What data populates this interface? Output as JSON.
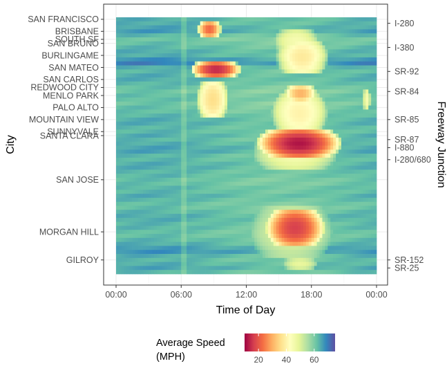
{
  "chart_data": {
    "type": "heatmap",
    "xlabel": "Time of Day",
    "ylabel": "City",
    "y2label": "Freeway Junction",
    "x_ticks": [
      "00:00",
      "06:00",
      "12:00",
      "18:00",
      "00:00"
    ],
    "x_range_hours": [
      0,
      24
    ],
    "grid": true,
    "city_labels": [
      {
        "name": "SAN FRANCISCO",
        "row": 0
      },
      {
        "name": "BRISBANE",
        "row": 3
      },
      {
        "name": "SOUTH SF",
        "row": 5
      },
      {
        "name": "SAN BRUNO",
        "row": 6
      },
      {
        "name": "BURLINGAME",
        "row": 9
      },
      {
        "name": "SAN MATEO",
        "row": 12
      },
      {
        "name": "SAN CARLOS",
        "row": 15
      },
      {
        "name": "REDWOOD CITY",
        "row": 17
      },
      {
        "name": "MENLO PARK",
        "row": 19
      },
      {
        "name": "PALO ALTO",
        "row": 22
      },
      {
        "name": "MOUNTAIN VIEW",
        "row": 25
      },
      {
        "name": "SUNNYVALE",
        "row": 28
      },
      {
        "name": "SANTA CLARA",
        "row": 29
      },
      {
        "name": "SAN JOSE",
        "row": 40
      },
      {
        "name": "MORGAN HILL",
        "row": 53
      },
      {
        "name": "GILROY",
        "row": 60
      }
    ],
    "junction_labels": [
      {
        "name": "I-280",
        "row": 1
      },
      {
        "name": "I-380",
        "row": 7
      },
      {
        "name": "SR-92",
        "row": 13
      },
      {
        "name": "SR-84",
        "row": 18
      },
      {
        "name": "SR-85",
        "row": 25
      },
      {
        "name": "SR-87",
        "row": 30
      },
      {
        "name": "I-880",
        "row": 32
      },
      {
        "name": "I-280/680",
        "row": 35
      },
      {
        "name": "SR-152",
        "row": 60
      },
      {
        "name": "SR-25",
        "row": 62
      }
    ],
    "n_rows": 64,
    "baseline_speed_mph": [
      63,
      63,
      64,
      65,
      62,
      60,
      61,
      62,
      63,
      63,
      66,
      68,
      63,
      62,
      63,
      63,
      62,
      61,
      60,
      61,
      61,
      60,
      61,
      61,
      62,
      63,
      63,
      62,
      62,
      63,
      62,
      63,
      64,
      64,
      62,
      62,
      63,
      63,
      62,
      62,
      61,
      61,
      62,
      62,
      63,
      62,
      61,
      61,
      62,
      63,
      63,
      62,
      62,
      61,
      61,
      62,
      63,
      65,
      66,
      63,
      62,
      63,
      64,
      62
    ],
    "congestion_hotspots": [
      {
        "row_start": 1,
        "row_end": 4,
        "from_hour": 7.6,
        "to_hour": 9.6,
        "min_speed_mph": 22
      },
      {
        "row_start": 3,
        "row_end": 8,
        "from_hour": 14.8,
        "to_hour": 18.4,
        "min_speed_mph": 45
      },
      {
        "row_start": 6,
        "row_end": 13,
        "from_hour": 15.0,
        "to_hour": 19.3,
        "min_speed_mph": 38
      },
      {
        "row_start": 11,
        "row_end": 14,
        "from_hour": 7.1,
        "to_hour": 11.3,
        "min_speed_mph": 14
      },
      {
        "row_start": 16,
        "row_end": 24,
        "from_hour": 7.6,
        "to_hour": 10.2,
        "min_speed_mph": 36
      },
      {
        "row_start": 17,
        "row_end": 20,
        "from_hour": 15.7,
        "to_hour": 18.3,
        "min_speed_mph": 30
      },
      {
        "row_start": 19,
        "row_end": 28,
        "from_hour": 14.6,
        "to_hour": 19.2,
        "min_speed_mph": 40
      },
      {
        "row_start": 18,
        "row_end": 22,
        "from_hour": 22.8,
        "to_hour": 23.4,
        "min_speed_mph": 45
      },
      {
        "row_start": 28,
        "row_end": 34,
        "from_hour": 13.3,
        "to_hour": 20.4,
        "min_speed_mph": 12
      },
      {
        "row_start": 29,
        "row_end": 37,
        "from_hour": 13.0,
        "to_hour": 20.0,
        "min_speed_mph": 45
      },
      {
        "row_start": 48,
        "row_end": 56,
        "from_hour": 14.0,
        "to_hour": 19.0,
        "min_speed_mph": 17
      },
      {
        "row_start": 47,
        "row_end": 59,
        "from_hour": 12.8,
        "to_hour": 19.5,
        "min_speed_mph": 50
      },
      {
        "row_start": 60,
        "row_end": 62,
        "from_hour": 15.5,
        "to_hour": 18.4,
        "min_speed_mph": 48
      }
    ],
    "legend": {
      "title_lines": [
        "Average Speed",
        "(MPH)"
      ],
      "ticks": [
        20,
        40,
        60
      ],
      "range": [
        10,
        75
      ],
      "placement": "bottom"
    },
    "colormap": [
      "#9e0142",
      "#d53e4f",
      "#f46d43",
      "#fdae61",
      "#fee08b",
      "#ffffbf",
      "#e6f598",
      "#abdda4",
      "#66c2a5",
      "#3288bd",
      "#5e4fa2"
    ]
  }
}
